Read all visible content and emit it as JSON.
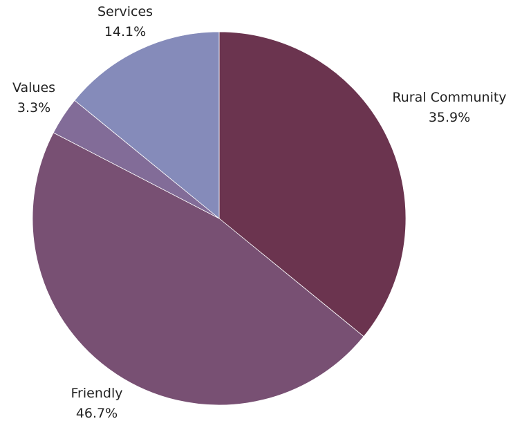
{
  "chart_data": {
    "type": "pie",
    "title": "",
    "start_angle_deg": 0,
    "direction": "clockwise",
    "legend": "none",
    "slices": [
      {
        "label": "Rural Community",
        "value": 35.9,
        "value_label": "35.9%",
        "color": "#6b344f"
      },
      {
        "label": "Friendly",
        "value": 46.7,
        "value_label": "46.7%",
        "color": "#785073"
      },
      {
        "label": "Values",
        "value": 3.3,
        "value_label": "3.3%",
        "color": "#826c98"
      },
      {
        "label": "Services",
        "value": 14.1,
        "value_label": "14.1%",
        "color": "#858bba"
      }
    ]
  }
}
